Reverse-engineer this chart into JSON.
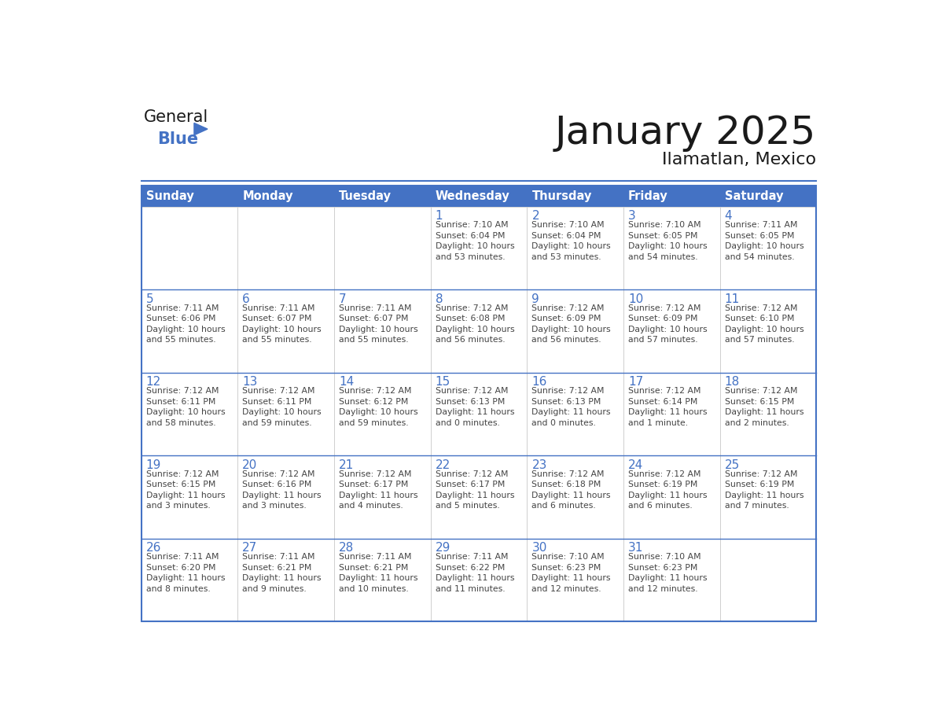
{
  "title": "January 2025",
  "subtitle": "Ilamatlan, Mexico",
  "days_of_week": [
    "Sunday",
    "Monday",
    "Tuesday",
    "Wednesday",
    "Thursday",
    "Friday",
    "Saturday"
  ],
  "header_bg_color": "#4472C4",
  "header_text_color": "#FFFFFF",
  "day_number_color": "#4472C4",
  "text_color": "#444444",
  "row_line_color": "#4472C4",
  "col_line_color": "#CCCCCC",
  "outer_border_color": "#4472C4",
  "title_color": "#1a1a1a",
  "subtitle_color": "#1a1a1a",
  "logo_general_color": "#1a1a1a",
  "logo_blue_color": "#4472C4",
  "logo_triangle_color": "#4472C4",
  "separator_color": "#4472C4",
  "calendar_data": [
    [
      "",
      "",
      "",
      "1\nSunrise: 7:10 AM\nSunset: 6:04 PM\nDaylight: 10 hours\nand 53 minutes.",
      "2\nSunrise: 7:10 AM\nSunset: 6:04 PM\nDaylight: 10 hours\nand 53 minutes.",
      "3\nSunrise: 7:10 AM\nSunset: 6:05 PM\nDaylight: 10 hours\nand 54 minutes.",
      "4\nSunrise: 7:11 AM\nSunset: 6:05 PM\nDaylight: 10 hours\nand 54 minutes."
    ],
    [
      "5\nSunrise: 7:11 AM\nSunset: 6:06 PM\nDaylight: 10 hours\nand 55 minutes.",
      "6\nSunrise: 7:11 AM\nSunset: 6:07 PM\nDaylight: 10 hours\nand 55 minutes.",
      "7\nSunrise: 7:11 AM\nSunset: 6:07 PM\nDaylight: 10 hours\nand 55 minutes.",
      "8\nSunrise: 7:12 AM\nSunset: 6:08 PM\nDaylight: 10 hours\nand 56 minutes.",
      "9\nSunrise: 7:12 AM\nSunset: 6:09 PM\nDaylight: 10 hours\nand 56 minutes.",
      "10\nSunrise: 7:12 AM\nSunset: 6:09 PM\nDaylight: 10 hours\nand 57 minutes.",
      "11\nSunrise: 7:12 AM\nSunset: 6:10 PM\nDaylight: 10 hours\nand 57 minutes."
    ],
    [
      "12\nSunrise: 7:12 AM\nSunset: 6:11 PM\nDaylight: 10 hours\nand 58 minutes.",
      "13\nSunrise: 7:12 AM\nSunset: 6:11 PM\nDaylight: 10 hours\nand 59 minutes.",
      "14\nSunrise: 7:12 AM\nSunset: 6:12 PM\nDaylight: 10 hours\nand 59 minutes.",
      "15\nSunrise: 7:12 AM\nSunset: 6:13 PM\nDaylight: 11 hours\nand 0 minutes.",
      "16\nSunrise: 7:12 AM\nSunset: 6:13 PM\nDaylight: 11 hours\nand 0 minutes.",
      "17\nSunrise: 7:12 AM\nSunset: 6:14 PM\nDaylight: 11 hours\nand 1 minute.",
      "18\nSunrise: 7:12 AM\nSunset: 6:15 PM\nDaylight: 11 hours\nand 2 minutes."
    ],
    [
      "19\nSunrise: 7:12 AM\nSunset: 6:15 PM\nDaylight: 11 hours\nand 3 minutes.",
      "20\nSunrise: 7:12 AM\nSunset: 6:16 PM\nDaylight: 11 hours\nand 3 minutes.",
      "21\nSunrise: 7:12 AM\nSunset: 6:17 PM\nDaylight: 11 hours\nand 4 minutes.",
      "22\nSunrise: 7:12 AM\nSunset: 6:17 PM\nDaylight: 11 hours\nand 5 minutes.",
      "23\nSunrise: 7:12 AM\nSunset: 6:18 PM\nDaylight: 11 hours\nand 6 minutes.",
      "24\nSunrise: 7:12 AM\nSunset: 6:19 PM\nDaylight: 11 hours\nand 6 minutes.",
      "25\nSunrise: 7:12 AM\nSunset: 6:19 PM\nDaylight: 11 hours\nand 7 minutes."
    ],
    [
      "26\nSunrise: 7:11 AM\nSunset: 6:20 PM\nDaylight: 11 hours\nand 8 minutes.",
      "27\nSunrise: 7:11 AM\nSunset: 6:21 PM\nDaylight: 11 hours\nand 9 minutes.",
      "28\nSunrise: 7:11 AM\nSunset: 6:21 PM\nDaylight: 11 hours\nand 10 minutes.",
      "29\nSunrise: 7:11 AM\nSunset: 6:22 PM\nDaylight: 11 hours\nand 11 minutes.",
      "30\nSunrise: 7:10 AM\nSunset: 6:23 PM\nDaylight: 11 hours\nand 12 minutes.",
      "31\nSunrise: 7:10 AM\nSunset: 6:23 PM\nDaylight: 11 hours\nand 12 minutes.",
      ""
    ]
  ]
}
